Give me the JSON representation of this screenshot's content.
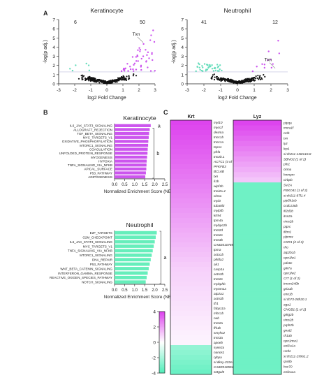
{
  "panel_letters": {
    "a": "A",
    "b": "B",
    "c": "C"
  },
  "chart_data": [
    {
      "type": "scatter",
      "title": "Keratinocyte",
      "xlabel": "log2 Fold Change",
      "ylabel": "-log(p adj.)",
      "xlim": [
        -3,
        3
      ],
      "ylim": [
        0,
        7
      ],
      "xticks": [
        "-3",
        "-2",
        "-1",
        "0",
        "1",
        "2",
        "3"
      ],
      "yticks": [
        "0",
        "1",
        "2",
        "3",
        "4",
        "5",
        "6",
        "7"
      ],
      "corner_counts": {
        "left": "6",
        "right": "50"
      },
      "annotations": [
        {
          "text": "Txn",
          "x": 2.0,
          "y": 4.8
        }
      ],
      "colors": {
        "up": "#cc55ee",
        "down": "#66ddbb",
        "ns": "#111111",
        "threshold": "#bbbbdd"
      }
    },
    {
      "type": "scatter",
      "title": "Neutrophil",
      "xlabel": "log2 Fold Change",
      "ylabel": "-log(p adj.)",
      "xlim": [
        -3,
        3
      ],
      "ylim": [
        0,
        7
      ],
      "xticks": [
        "-3",
        "-2",
        "-1",
        "0",
        "1",
        "2",
        "3"
      ],
      "yticks": [
        "0",
        "1",
        "2",
        "3",
        "4",
        "5",
        "6",
        "7"
      ],
      "corner_counts": {
        "left": "41",
        "right": "12"
      },
      "annotations": [
        {
          "text": "Txn",
          "x": 2.0,
          "y": 2.0
        }
      ],
      "colors": {
        "up": "#cc55ee",
        "down": "#66ddbb",
        "ns": "#111111",
        "threshold": "#bbbbdd"
      }
    },
    {
      "type": "bar",
      "orientation": "horizontal",
      "title": "Keratinocyte",
      "xlabel": "Normalized Enrichment Score (NES)",
      "xlim": [
        0,
        2.5
      ],
      "xticks": [
        "0.0",
        "0.5",
        "1.0",
        "1.5",
        "2.0",
        "2.5"
      ],
      "color": "#cc55ee",
      "categories": [
        "IL6_JAK_STAT3_SIGNALING",
        "ALLOGRAFT_REJECTION",
        "TGF_BETA_SIGNALING",
        "MYC_TARGETS_V1",
        "OXIDATIVE_PHOSPHORYLATION",
        "MTORC1_SIGNALING",
        "COAGULATION",
        "UNFOLDED_PROTEIN_RESPONSE",
        "MYOGENESIS",
        "HYPOXIA",
        "TNFA_SIGNALING_VIA_NFKB",
        "APICAL_SURFACE",
        "P53_PATHWAY",
        "ADIPOGENESIS"
      ],
      "values": [
        1.8,
        1.75,
        1.72,
        1.7,
        1.68,
        1.67,
        1.65,
        1.64,
        1.62,
        1.6,
        1.59,
        1.58,
        1.56,
        1.53
      ],
      "group_labels": [
        {
          "text": "a",
          "from": 0,
          "to": 0
        },
        {
          "text": "b",
          "from": 1,
          "to": 13
        }
      ]
    },
    {
      "type": "bar",
      "orientation": "horizontal",
      "title": "Neutrophil",
      "xlabel": "Normalized Enrichment Score (NES)",
      "xlim": [
        0,
        2.5
      ],
      "xticks": [
        "0.0",
        "0.5",
        "1.0",
        "1.5",
        "2.0",
        "2.5"
      ],
      "color": "#66eebb",
      "categories": [
        "E2F_TARGETS",
        "G2M_CHECKPOINT",
        "IL6_JAK_STAT3_SIGNALING",
        "MYC_TARGETS_V1",
        "TNFA_SIGNALING_VIA_NFKB",
        "MTORC1_SIGNALING",
        "DNA_REPAIR",
        "P53_PATHWAY",
        "WNT_BETA_CATENIN_SIGNALING",
        "INTERFERON_GAMMA_RESPONSE",
        "REACTIVE_OXIGEN_SPECIES_PATHWAY",
        "NOTCH_SIGNALING"
      ],
      "values": [
        2.1,
        2.05,
        2.0,
        1.95,
        1.9,
        1.85,
        1.8,
        1.75,
        1.7,
        1.65,
        1.6,
        1.55
      ],
      "group_labels": [
        {
          "text": "a",
          "from": 0,
          "to": 11
        }
      ]
    },
    {
      "type": "heatmap",
      "title": "Krt",
      "colorbar": {
        "min": -4,
        "max": 4,
        "ticks": [
          "4",
          "2",
          "0",
          "-2",
          "-4"
        ]
      },
      "colors": {
        "high": "#dd44ee",
        "mid": "#ffffff",
        "low": "#55eebb"
      },
      "rows": [
        "myl10",
        "myo1f",
        "desma",
        "tnnc1b",
        "tnnc1a",
        "tspn1",
        "pfrfa",
        "tnn2b.1",
        "ACTC1 (4 of 6)",
        "PFKFB3",
        "BCL6B",
        "txn",
        "il1b",
        "wipf1b",
        "tnni2a.4",
        "ckma",
        "myl3",
        "tuba8l3",
        "mylpfb",
        "krt94",
        "tpm4a",
        "mybpc2b",
        "tnnt2d",
        "tnnt2e",
        "tnnt3b",
        "CABZ01078594.1",
        "tpma",
        "acta1b",
        "phlda2",
        "ak1",
        "casp1a",
        "actn3b",
        "tnnt2e",
        "mybphb",
        "myom1a",
        "atp2a1",
        "actn3b",
        "tfr1",
        "fabp11a",
        "mhc1b",
        "neb",
        "tnnt2a",
        "fhl1b",
        "smyhc2",
        "tnnt3a",
        "apoeb",
        "syne2a",
        "nanos1",
        "rybpa",
        "si:dkey-222e15.4",
        "CABZ01059415.2",
        "st3gal5"
      ],
      "values": [
        4,
        3.9,
        3.8,
        3.7,
        3.6,
        3.5,
        3.4,
        3.3,
        3.2,
        3.1,
        3.0,
        2.9,
        2.8,
        2.7,
        2.6,
        2.5,
        2.4,
        2.3,
        2.2,
        2.1,
        2.0,
        1.9,
        1.8,
        1.7,
        1.6,
        1.5,
        1.4,
        1.3,
        1.2,
        1.1,
        1.0,
        0.95,
        0.9,
        0.85,
        0.8,
        0.75,
        0.7,
        0.65,
        0.6,
        0.55,
        0.5,
        0.45,
        0.4,
        0.35,
        0.3,
        0.25,
        -2.5,
        -2.7,
        -2.9,
        -3.1,
        -3.3,
        -3.5
      ]
    },
    {
      "type": "heatmap",
      "title": "Lyz",
      "colors": {
        "high": "#dd44ee",
        "mid": "#ffffff",
        "low": "#55eebb"
      },
      "rows": [
        "ptpqa",
        "mxra1f",
        "ncf1",
        "txn",
        "lyz",
        "lcp1",
        "si:ch211-136m16.8",
        "SBNO2 (1 of 2)",
        "pfn1",
        "ckma",
        "hnmpm",
        "cirbpb",
        "SV2A",
        "FBXO41 (1 of 2)",
        "si:ch211-87l1.4",
        "pip5k1cb",
        "ccdc136b",
        "ifi2d2b",
        "itsn2a",
        "rims2b",
        "ptprc",
        "ifitm1",
        "plpmw",
        "CXR1 (2 of 3)",
        "rho",
        "atp2b1b",
        "opn1lw1",
        "pdx6c",
        "grk7a",
        "opn1lw2",
        "CIT (1 of 2)",
        "tmem240b",
        "gria1b",
        "eno1b",
        "si:ch73-28h20.1",
        "aga1",
        "CNGB1 (1 of 2)",
        "grkg2b",
        "rims2b",
        "prph2b",
        "gnat2",
        "rh1ab",
        "opn1mw1",
        "eef1a1a",
        "rxrtl1",
        "si:ch211-199o1.2",
        "rps8b",
        "hsc70",
        "eef1a1a"
      ],
      "split_index": 12
    }
  ]
}
